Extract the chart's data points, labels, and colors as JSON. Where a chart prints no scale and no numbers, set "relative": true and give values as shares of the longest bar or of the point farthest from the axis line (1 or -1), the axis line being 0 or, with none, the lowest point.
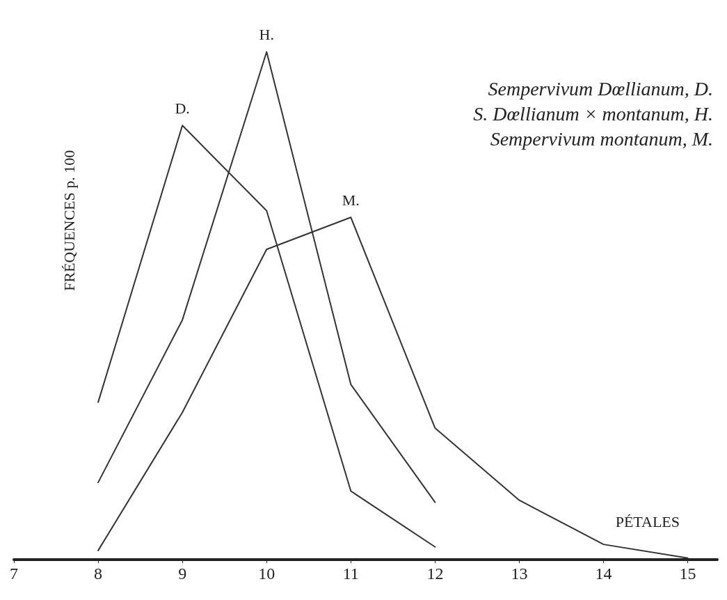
{
  "chart_data": {
    "type": "line",
    "relative": true,
    "xlabel": "PÉTALES",
    "ylabel": "FRÉQUENCES p. 100",
    "annotations": [
      "Sempervivum Dœllianum, D.",
      "S. Dœllianum × montanum, H.",
      "Sempervivum montanum, M."
    ],
    "xlim": [
      7,
      15.35
    ],
    "xticks": [
      7,
      8,
      9,
      10,
      11,
      12,
      13,
      14,
      15
    ],
    "grid": false,
    "legend": false,
    "marker": "none",
    "line_style": "solid",
    "series": [
      {
        "name": "D.",
        "color": "#333333",
        "x": [
          8,
          9,
          10,
          11,
          12
        ],
        "values": [
          0.31,
          0.855,
          0.687,
          0.135,
          0.025
        ]
      },
      {
        "name": "H.",
        "color": "#333333",
        "x": [
          8,
          9,
          10,
          11,
          12
        ],
        "values": [
          0.152,
          0.472,
          1,
          0.345,
          0.113
        ]
      },
      {
        "name": "M.",
        "color": "#333333",
        "x": [
          8,
          9,
          10,
          11,
          12,
          13,
          14,
          15
        ],
        "values": [
          0.018,
          0.29,
          0.611,
          0.674,
          0.259,
          0.117,
          0.03,
          0.003
        ]
      }
    ]
  }
}
